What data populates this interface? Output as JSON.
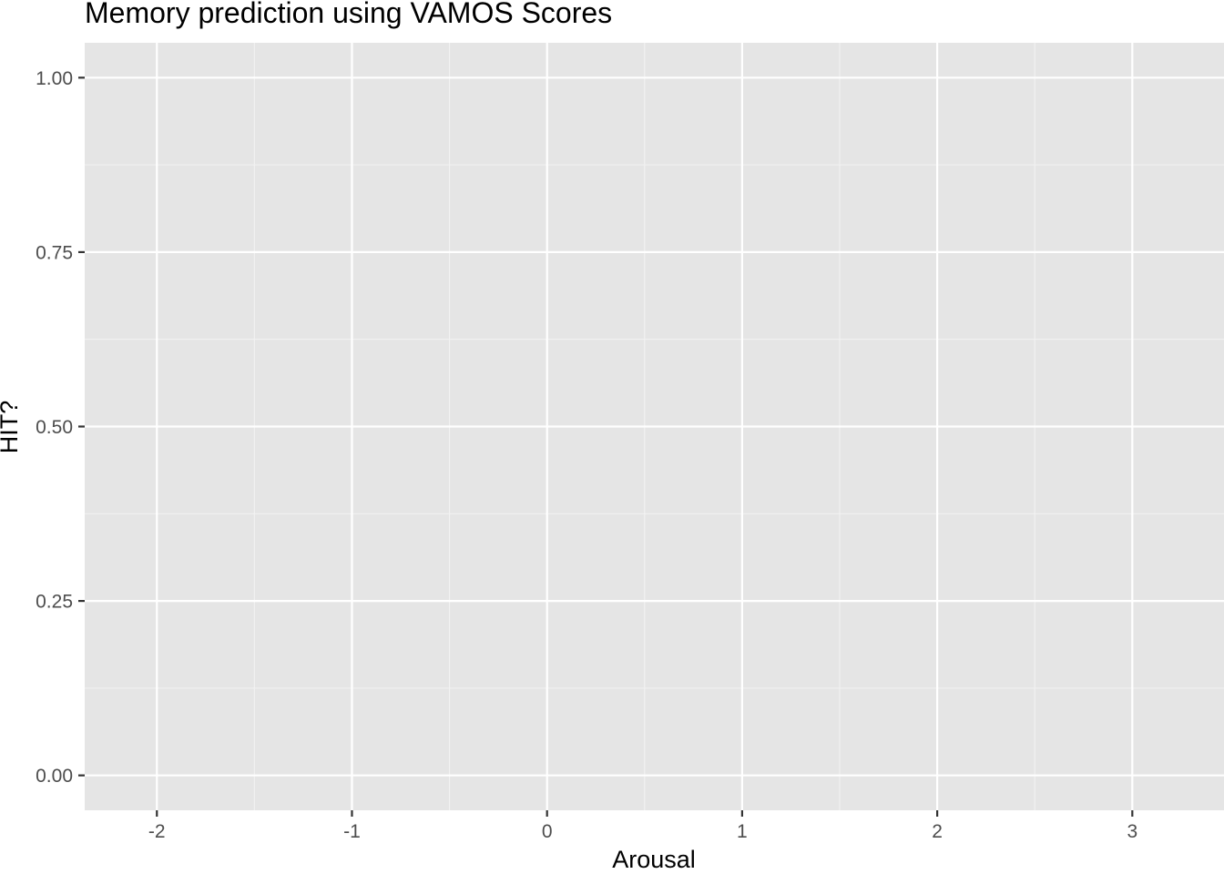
{
  "chart_data": {
    "type": "scatter",
    "title": "Memory prediction using VAMOS Scores",
    "xlabel": "Arousal",
    "ylabel": "HIT?",
    "x_ticks": [
      -2,
      -1,
      0,
      1,
      2,
      3
    ],
    "x_tick_labels": [
      "-2",
      "-1",
      "0",
      "1",
      "2",
      "3"
    ],
    "y_ticks": [
      0,
      0.25,
      0.5,
      0.75,
      1
    ],
    "y_tick_labels": [
      "0.00",
      "0.25",
      "0.50",
      "0.75",
      "1.00"
    ],
    "xlim": [
      -2.37,
      3.47
    ],
    "ylim": [
      -0.05,
      1.05
    ],
    "grid": true,
    "series": [],
    "colors": {
      "panel_background": "#e5e5e5",
      "grid_major": "#ffffff",
      "grid_minor": "#f2f2f2",
      "tick_mark": "#333333",
      "tick_label": "#4d4d4d",
      "text": "#000000"
    }
  }
}
